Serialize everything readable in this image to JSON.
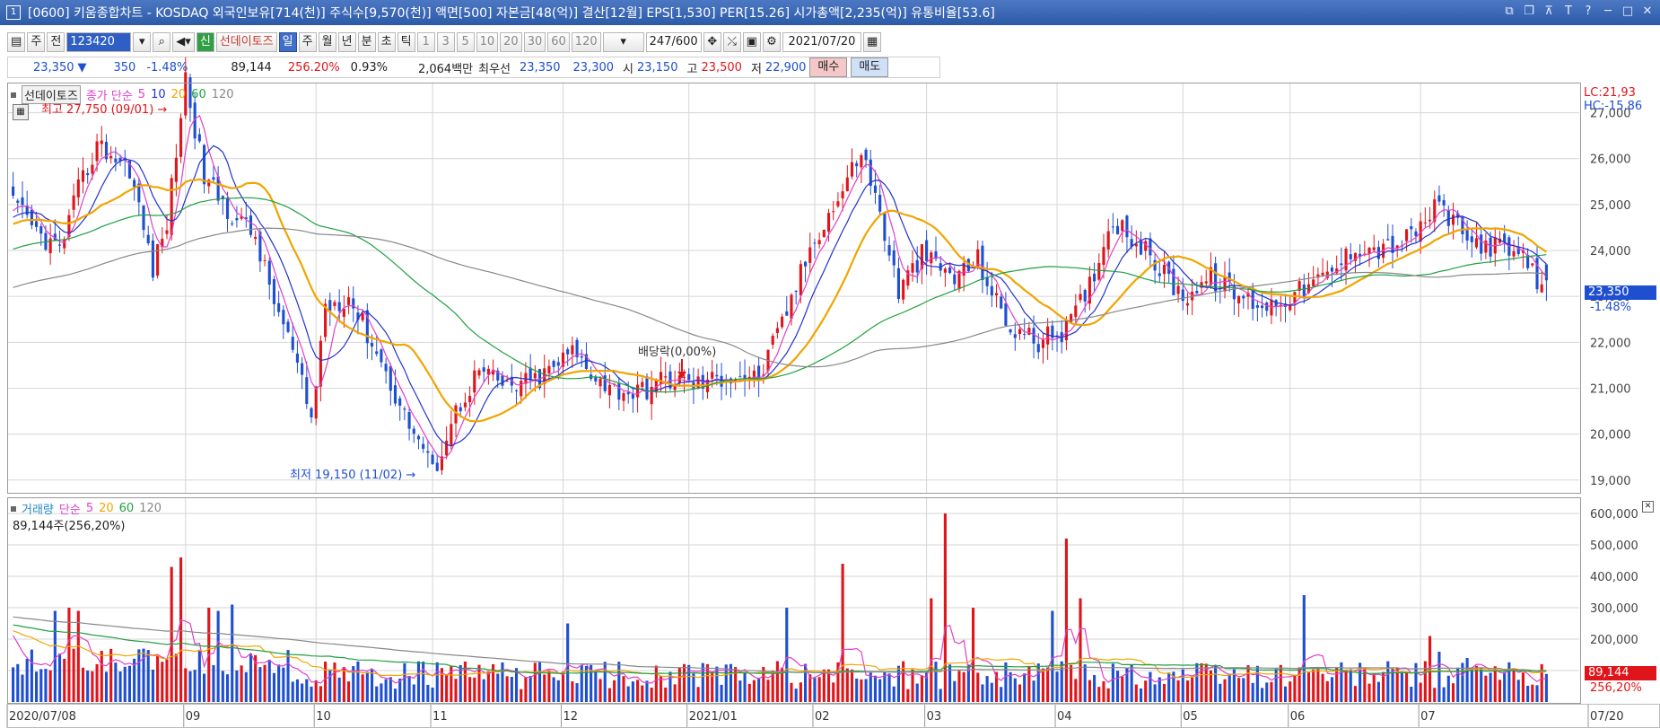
{
  "window": {
    "number": "1",
    "title": "[0600] 키움종합차트 - KOSDAQ 외국인보유[714(천)] 주식수[9,570(천)] 액면[500] 자본금[48(억)] 결산[12월] EPS[1,530] PER[15.26] 시가총액[2,235(억)] 유통비율[53.6]",
    "controls": [
      "⧉",
      "❐",
      "⊼",
      "T",
      "?",
      "─",
      "□",
      "✕"
    ]
  },
  "toolbar": {
    "period_type": "주",
    "range_type": "전",
    "code": "123420",
    "company": "선데이토즈",
    "periods": [
      "일",
      "주",
      "월",
      "년",
      "분",
      "초",
      "틱"
    ],
    "selected_period": "일",
    "intervals": [
      "1",
      "3",
      "5",
      "10",
      "20",
      "30",
      "60",
      "120"
    ],
    "count": "247",
    "count_max": "/600",
    "date": "2021/07/20"
  },
  "quote": {
    "price": "23,350",
    "arrow": "▼",
    "change": "350",
    "change_pct": "-1.48%",
    "volume": "89,144",
    "volume_ratio": "256.20%",
    "turnover": "0.93%",
    "amount": "2,064백만",
    "best_label": "최우선",
    "best_ask": "23,350",
    "best_bid": "23,300",
    "open_label": "시",
    "open": "23,150",
    "high_label": "고",
    "high": "23,500",
    "low_label": "저",
    "low": "22,900",
    "buy_label": "매수",
    "sell_label": "매도"
  },
  "price_pane": {
    "legend_name": "선데이토즈",
    "legend_series": "종가 단순",
    "ma_labels": [
      "5",
      "10",
      "20",
      "60",
      "120"
    ],
    "ma_colors": [
      "#e040c8",
      "#2233cc",
      "#f0a500",
      "#20a040",
      "#888888"
    ],
    "lc_label": "LC:21,93",
    "hc_label": "HC:-15,86",
    "current_label": "23,350",
    "current_pct": "-1.48%",
    "high_marker": "최고 27,750 (09/01)",
    "low_marker": "최저 19,150 (11/02)",
    "dividend_marker": "배당락(0,00%)"
  },
  "volume_pane": {
    "legend_name": "거래량",
    "legend_series": "단순",
    "ma_labels": [
      "5",
      "20",
      "60",
      "120"
    ],
    "ma_colors": [
      "#e040c8",
      "#f0a500",
      "#20a040",
      "#888888"
    ],
    "current_text": "89,144주(256,20%)",
    "current_label": "89,144",
    "current_pct": "256,20%"
  },
  "chart_data": {
    "type": "candlestick",
    "up_color": "#e0151b",
    "down_color": "#1f4fd1",
    "price_axis": {
      "min": 18800,
      "max": 27500,
      "ticks": [
        19000,
        20000,
        21000,
        22000,
        23000,
        24000,
        25000,
        26000,
        27000
      ],
      "tick_labels": [
        "19,000",
        "20,000",
        "21,000",
        "22,000",
        "23,000",
        "24,000",
        "25,000",
        "26,000",
        "27,000"
      ]
    },
    "volume_axis": {
      "min": 0,
      "max": 620000,
      "ticks": [
        100000,
        200000,
        300000,
        400000,
        500000,
        600000
      ],
      "tick_labels": [
        "100,000",
        "200,000",
        "300,000",
        "400,000",
        "500,000",
        "600,000"
      ]
    },
    "x_labels": [
      "2020/07/08",
      "09",
      "10",
      "11",
      "12",
      "2021/01",
      "02",
      "03",
      "04",
      "05",
      "06",
      "07",
      "07/20"
    ],
    "x_label_index": [
      0,
      37,
      65,
      90,
      118,
      145,
      172,
      196,
      224,
      251,
      274,
      302,
      328
    ],
    "candles_count": 330,
    "price_keypoints": [
      [
        0,
        25000
      ],
      [
        5,
        24400
      ],
      [
        10,
        24000
      ],
      [
        14,
        25300
      ],
      [
        18,
        26300
      ],
      [
        25,
        25800
      ],
      [
        30,
        23600
      ],
      [
        33,
        24600
      ],
      [
        37,
        27750
      ],
      [
        41,
        25600
      ],
      [
        46,
        24900
      ],
      [
        52,
        24300
      ],
      [
        55,
        23200
      ],
      [
        60,
        21800
      ],
      [
        64,
        20300
      ],
      [
        67,
        22800
      ],
      [
        72,
        23000
      ],
      [
        78,
        21800
      ],
      [
        84,
        20400
      ],
      [
        88,
        19700
      ],
      [
        90,
        19150
      ],
      [
        95,
        20500
      ],
      [
        100,
        21400
      ],
      [
        106,
        21000
      ],
      [
        113,
        21200
      ],
      [
        120,
        21800
      ],
      [
        128,
        21000
      ],
      [
        134,
        20900
      ],
      [
        140,
        21200
      ],
      [
        147,
        21100
      ],
      [
        155,
        21300
      ],
      [
        160,
        21200
      ],
      [
        165,
        22400
      ],
      [
        172,
        24300
      ],
      [
        177,
        25100
      ],
      [
        182,
        26200
      ],
      [
        186,
        24800
      ],
      [
        190,
        23100
      ],
      [
        195,
        23900
      ],
      [
        202,
        23400
      ],
      [
        207,
        23800
      ],
      [
        213,
        22400
      ],
      [
        220,
        22000
      ],
      [
        226,
        22300
      ],
      [
        230,
        23000
      ],
      [
        236,
        24700
      ],
      [
        241,
        24200
      ],
      [
        246,
        23600
      ],
      [
        251,
        23000
      ],
      [
        257,
        23400
      ],
      [
        263,
        23000
      ],
      [
        269,
        22800
      ],
      [
        276,
        23100
      ],
      [
        283,
        23500
      ],
      [
        288,
        24100
      ],
      [
        294,
        24000
      ],
      [
        300,
        24300
      ],
      [
        306,
        25000
      ],
      [
        312,
        24200
      ],
      [
        318,
        24100
      ],
      [
        322,
        23900
      ],
      [
        325,
        23700
      ],
      [
        327,
        23350
      ]
    ],
    "volume_spikes": [
      [
        9,
        290000
      ],
      [
        12,
        300000
      ],
      [
        14,
        290000
      ],
      [
        34,
        430000
      ],
      [
        36,
        460000
      ],
      [
        42,
        300000
      ],
      [
        44,
        290000
      ],
      [
        47,
        310000
      ],
      [
        119,
        250000
      ],
      [
        166,
        300000
      ],
      [
        178,
        440000
      ],
      [
        197,
        330000
      ],
      [
        200,
        600000
      ],
      [
        206,
        300000
      ],
      [
        223,
        290000
      ],
      [
        226,
        520000
      ],
      [
        229,
        330000
      ],
      [
        277,
        340000
      ],
      [
        304,
        210000
      ],
      [
        306,
        160000
      ],
      [
        312,
        140000
      ]
    ],
    "last_volume": 89144,
    "series": [
      {
        "name": "5",
        "color": "#e040c8",
        "period": 5
      },
      {
        "name": "10",
        "color": "#2233cc",
        "period": 10
      },
      {
        "name": "20",
        "color": "#f0a500",
        "period": 20
      },
      {
        "name": "60",
        "color": "#20a040",
        "period": 60
      },
      {
        "name": "120",
        "color": "#888888",
        "period": 120
      }
    ]
  }
}
